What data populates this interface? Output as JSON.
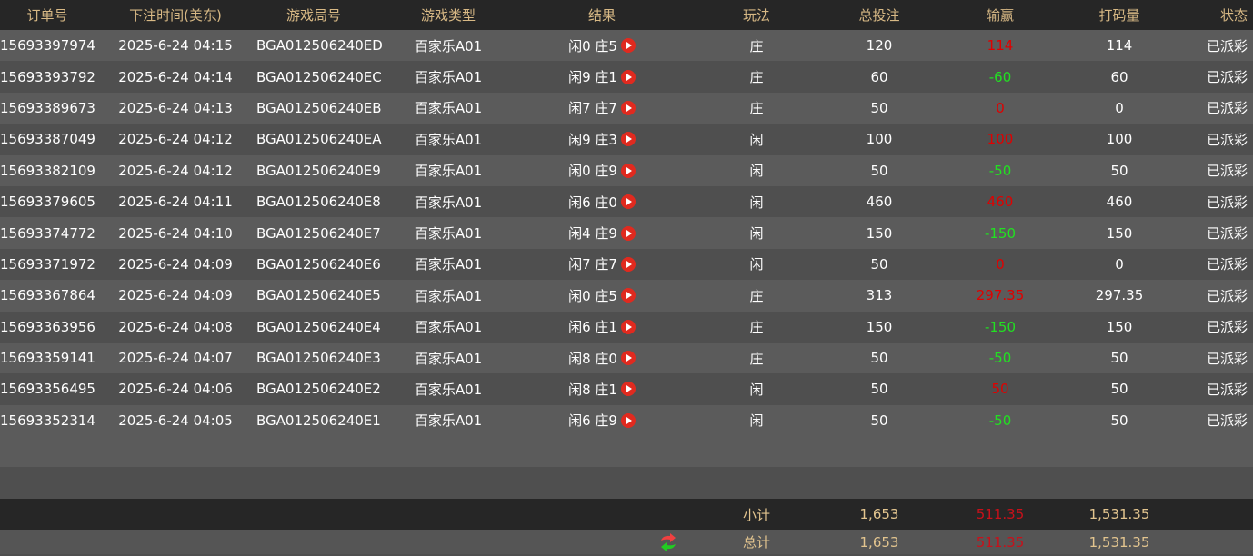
{
  "colors": {
    "header_text": "#d8b985",
    "win": "#e00000",
    "loss": "#22e022"
  },
  "headers": [
    "订单号",
    "下注时间(美东)",
    "游戏局号",
    "游戏类型",
    "结果",
    "玩法",
    "总投注",
    "输赢",
    "打码量",
    "状态"
  ],
  "rows": [
    [
      "15693397974",
      "2025-6-24 04:15",
      "BGA012506240ED",
      "百家乐A01",
      "闲0 庄5",
      "庄",
      "120",
      "114",
      "114",
      "已派彩"
    ],
    [
      "15693393792",
      "2025-6-24 04:14",
      "BGA012506240EC",
      "百家乐A01",
      "闲9 庄1",
      "庄",
      "60",
      "-60",
      "60",
      "已派彩"
    ],
    [
      "15693389673",
      "2025-6-24 04:13",
      "BGA012506240EB",
      "百家乐A01",
      "闲7 庄7",
      "庄",
      "50",
      "0",
      "0",
      "已派彩"
    ],
    [
      "15693387049",
      "2025-6-24 04:12",
      "BGA012506240EA",
      "百家乐A01",
      "闲9 庄3",
      "闲",
      "100",
      "100",
      "100",
      "已派彩"
    ],
    [
      "15693382109",
      "2025-6-24 04:12",
      "BGA012506240E9",
      "百家乐A01",
      "闲0 庄9",
      "闲",
      "50",
      "-50",
      "50",
      "已派彩"
    ],
    [
      "15693379605",
      "2025-6-24 04:11",
      "BGA012506240E8",
      "百家乐A01",
      "闲6 庄0",
      "闲",
      "460",
      "460",
      "460",
      "已派彩"
    ],
    [
      "15693374772",
      "2025-6-24 04:10",
      "BGA012506240E7",
      "百家乐A01",
      "闲4 庄9",
      "闲",
      "150",
      "-150",
      "150",
      "已派彩"
    ],
    [
      "15693371972",
      "2025-6-24 04:09",
      "BGA012506240E6",
      "百家乐A01",
      "闲7 庄7",
      "闲",
      "50",
      "0",
      "0",
      "已派彩"
    ],
    [
      "15693367864",
      "2025-6-24 04:09",
      "BGA012506240E5",
      "百家乐A01",
      "闲0 庄5",
      "庄",
      "313",
      "297.35",
      "297.35",
      "已派彩"
    ],
    [
      "15693363956",
      "2025-6-24 04:08",
      "BGA012506240E4",
      "百家乐A01",
      "闲6 庄1",
      "庄",
      "150",
      "-150",
      "150",
      "已派彩"
    ],
    [
      "15693359141",
      "2025-6-24 04:07",
      "BGA012506240E3",
      "百家乐A01",
      "闲8 庄0",
      "庄",
      "50",
      "-50",
      "50",
      "已派彩"
    ],
    [
      "15693356495",
      "2025-6-24 04:06",
      "BGA012506240E2",
      "百家乐A01",
      "闲8 庄1",
      "闲",
      "50",
      "50",
      "50",
      "已派彩"
    ],
    [
      "15693352314",
      "2025-6-24 04:05",
      "BGA012506240E1",
      "百家乐A01",
      "闲6 庄9",
      "闲",
      "50",
      "-50",
      "50",
      "已派彩"
    ]
  ],
  "subtotal": {
    "label": "小计",
    "bet": "1,653",
    "winloss": "511.35",
    "turnover": "1,531.35"
  },
  "total": {
    "label": "总计",
    "bet": "1,653",
    "winloss": "511.35",
    "turnover": "1,531.35",
    "icon": "refresh-icon"
  }
}
